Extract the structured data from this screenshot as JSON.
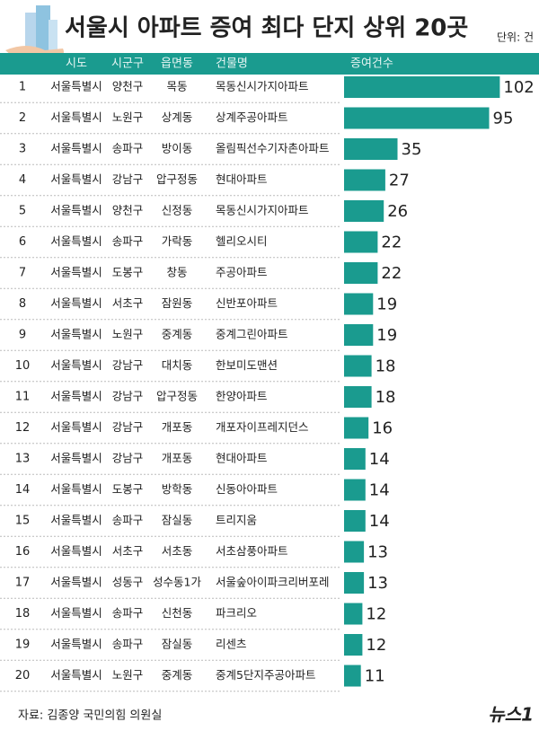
{
  "chart_data": {
    "type": "table-bar",
    "title": "서울시 아파트 증여 최다 단지 상위 20곳",
    "unit": "단위: 건",
    "columns": [
      "시도",
      "시군구",
      "읍면동",
      "건물명",
      "증여건수"
    ],
    "ranks": [
      1,
      2,
      3,
      4,
      5,
      6,
      7,
      8,
      9,
      10,
      11,
      12,
      13,
      14,
      15,
      16,
      17,
      18,
      19,
      20
    ],
    "rows": [
      [
        "서울특별시",
        "양천구",
        "목동",
        "목동신시가지아파트"
      ],
      [
        "서울특별시",
        "노원구",
        "상계동",
        "상계주공아파트"
      ],
      [
        "서울특별시",
        "송파구",
        "방이동",
        "올림픽선수기자촌아파트"
      ],
      [
        "서울특별시",
        "강남구",
        "압구정동",
        "현대아파트"
      ],
      [
        "서울특별시",
        "양천구",
        "신정동",
        "목동신시가지아파트"
      ],
      [
        "서울특별시",
        "송파구",
        "가락동",
        "헬리오시티"
      ],
      [
        "서울특별시",
        "도봉구",
        "창동",
        "주공아파트"
      ],
      [
        "서울특별시",
        "서초구",
        "잠원동",
        "신반포아파트"
      ],
      [
        "서울특별시",
        "노원구",
        "중계동",
        "중계그린아파트"
      ],
      [
        "서울특별시",
        "강남구",
        "대치동",
        "한보미도맨션"
      ],
      [
        "서울특별시",
        "강남구",
        "압구정동",
        "한양아파트"
      ],
      [
        "서울특별시",
        "강남구",
        "개포동",
        "개포자이프레지던스"
      ],
      [
        "서울특별시",
        "강남구",
        "개포동",
        "현대아파트"
      ],
      [
        "서울특별시",
        "도봉구",
        "방학동",
        "신동아아파트"
      ],
      [
        "서울특별시",
        "송파구",
        "잠실동",
        "트리지움"
      ],
      [
        "서울특별시",
        "서초구",
        "서초동",
        "서초삼풍아파트"
      ],
      [
        "서울특별시",
        "성동구",
        "성수동1가",
        "서울숲아이파크리버포레"
      ],
      [
        "서울특별시",
        "송파구",
        "신천동",
        "파크리오"
      ],
      [
        "서울특별시",
        "송파구",
        "잠실동",
        "리센츠"
      ],
      [
        "서울특별시",
        "노원구",
        "중계동",
        "중계5단지주공아파트"
      ]
    ],
    "values": [
      102,
      95,
      35,
      27,
      26,
      22,
      22,
      19,
      19,
      18,
      18,
      16,
      14,
      14,
      14,
      13,
      13,
      12,
      12,
      11
    ],
    "color": "#1a9b8f"
  },
  "source": "자료: 김종양 국민의힘 의원실",
  "logo": "뉴스1"
}
